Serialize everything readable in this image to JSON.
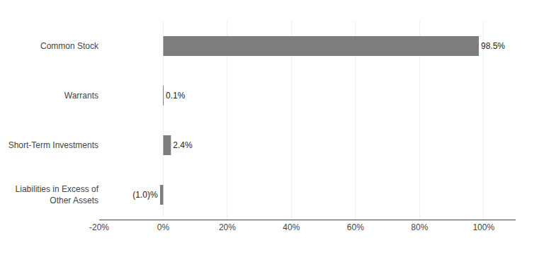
{
  "chart_data": {
    "type": "bar",
    "orientation": "horizontal",
    "categories": [
      "Common Stock",
      "Warrants",
      "Short-Term Investments",
      "Liabilities in Excess of\nOther Assets"
    ],
    "values": [
      98.5,
      0.1,
      2.4,
      -1.0
    ],
    "value_labels": [
      "98.5%",
      "0.1%",
      "2.4%",
      "(1.0)%"
    ],
    "data_labels": true,
    "color": "#7d7d7d",
    "xlim": [
      -20,
      110
    ],
    "xticks": [
      {
        "value": -20,
        "label": "-20%"
      },
      {
        "value": 0,
        "label": "0%"
      },
      {
        "value": 20,
        "label": "20%"
      },
      {
        "value": 40,
        "label": "40%"
      },
      {
        "value": 60,
        "label": "60%"
      },
      {
        "value": 80,
        "label": "80%"
      },
      {
        "value": 100,
        "label": "100%"
      }
    ],
    "grid": true
  }
}
